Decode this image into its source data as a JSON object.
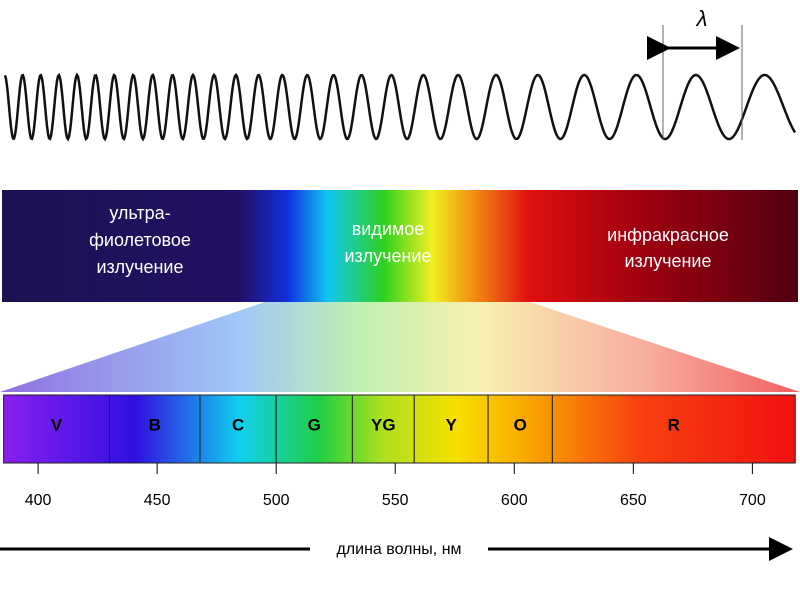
{
  "lambda": "λ",
  "regions": [
    {
      "lines": [
        "ультра-",
        "фиолетовое",
        "излучение"
      ]
    },
    {
      "lines": [
        "видимое",
        "излучение"
      ]
    },
    {
      "lines": [
        "инфракрасное",
        "излучение"
      ]
    }
  ],
  "bands": [
    {
      "label": "V",
      "from": 385.5,
      "to": 430
    },
    {
      "label": "B",
      "from": 430,
      "to": 468
    },
    {
      "label": "C",
      "from": 468,
      "to": 500
    },
    {
      "label": "G",
      "from": 500,
      "to": 532
    },
    {
      "label": "YG",
      "from": 532,
      "to": 558
    },
    {
      "label": "Y",
      "from": 558,
      "to": 589
    },
    {
      "label": "O",
      "from": 589,
      "to": 616
    },
    {
      "label": "R",
      "from": 616,
      "to": 718
    }
  ],
  "axis": {
    "label": "длина волны, нм",
    "range": [
      384,
      720
    ],
    "ticks": [
      400,
      450,
      500,
      550,
      600,
      650,
      700
    ]
  }
}
